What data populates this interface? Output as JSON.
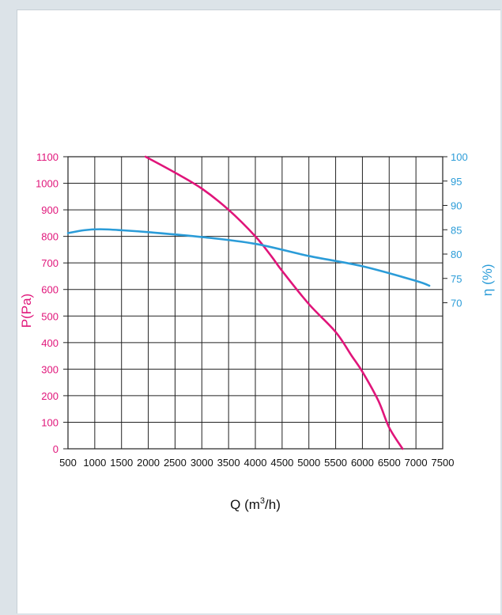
{
  "chart_data": {
    "type": "line",
    "xlabel": "Q (m³/h)",
    "ylabel_left": "P(Pa)",
    "ylabel_right": "η (%)",
    "xlim": [
      500,
      7500
    ],
    "x_ticks": [
      500,
      1000,
      1500,
      2000,
      2500,
      3000,
      3500,
      4000,
      4500,
      5000,
      5500,
      6000,
      6500,
      7000,
      7500
    ],
    "y_left_lim": [
      0,
      1100
    ],
    "y_left_ticks": [
      0,
      100,
      200,
      300,
      400,
      500,
      600,
      700,
      800,
      900,
      1000,
      1100
    ],
    "y_right_lim": [
      70,
      100
    ],
    "y_right_ticks": [
      70,
      75,
      80,
      85,
      90,
      95,
      100
    ],
    "grid": true,
    "colors": {
      "pressure": "#e0157a",
      "efficiency": "#2b9cd8",
      "axis": "#222222"
    },
    "series": [
      {
        "axis": "left",
        "x": [
          1950,
          2500,
          3000,
          3500,
          4000,
          4300,
          4500,
          5000,
          5500,
          5800,
          6000,
          6300,
          6500,
          6750
        ],
        "values": [
          1100,
          1040,
          980,
          900,
          800,
          725,
          670,
          545,
          440,
          350,
          290,
          180,
          80,
          0
        ]
      },
      {
        "axis": "right",
        "x": [
          500,
          800,
          1100,
          1500,
          2000,
          3000,
          4000,
          5000,
          6000,
          7000,
          7250
        ],
        "values": [
          84.3,
          84.9,
          85.1,
          84.9,
          84.5,
          83.5,
          82.1,
          79.6,
          77.5,
          74.5,
          73.5
        ]
      }
    ]
  }
}
